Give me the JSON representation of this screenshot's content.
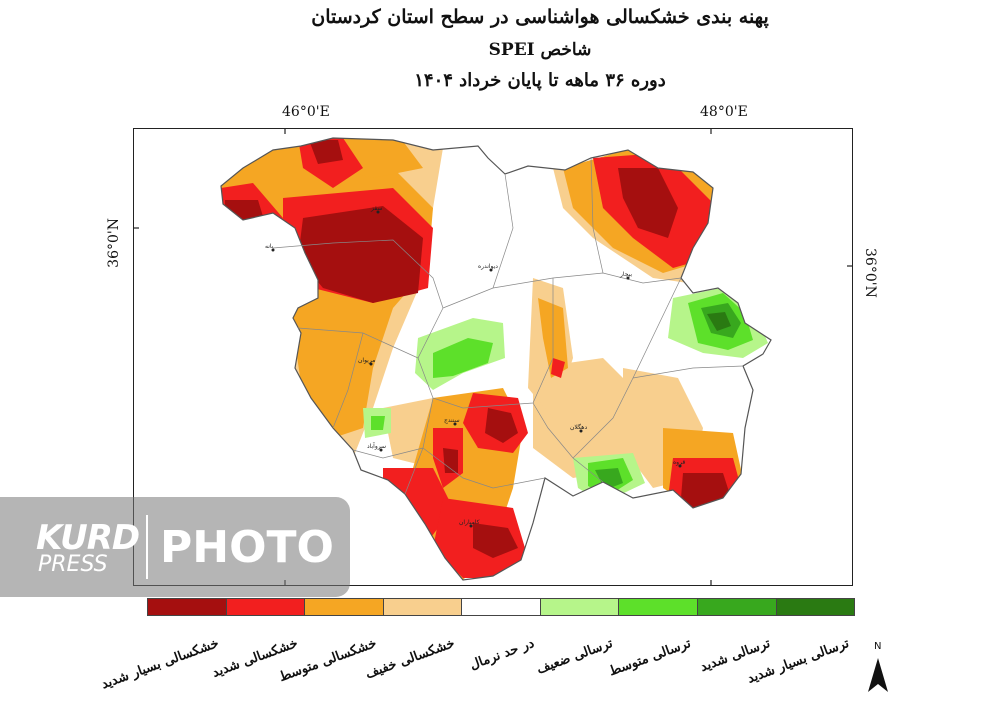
{
  "title": {
    "line1": "پهنه بندی خشکسالی هواشناسی در سطح استان کردستان",
    "line2": "شاخص SPEI",
    "line3": "دوره ۳۶ ماهه تا پایان خرداد ۱۴۰۴"
  },
  "coords": {
    "lon_46": "46°0'E",
    "lon_48": "48°0'E",
    "lat_left": "36°0'N",
    "lat_right": "36°0'N"
  },
  "cities": {
    "saqqez": "سقز",
    "baneh": "بانه",
    "divandarreh": "دیواندره",
    "bijar": "بیجار",
    "marivan": "مریوان",
    "sanandaj": "سنندج",
    "dehgolan": "دهگلان",
    "sarvabad": "سروآباد",
    "qorveh": "قروه",
    "kamyaran": "کامیاران"
  },
  "legend": [
    {
      "label": "خشکسالی بسیار شدید",
      "color": "#a50f0f"
    },
    {
      "label": "خشکسالی شدید",
      "color": "#f21f1f"
    },
    {
      "label": "خشکسالی متوسط",
      "color": "#f5a623"
    },
    {
      "label": "خشکسالی خفیف",
      "color": "#f8cf8e"
    },
    {
      "label": "در حد نرمال",
      "color": "#ffffff"
    },
    {
      "label": "ترسالی ضعیف",
      "color": "#b6f58a"
    },
    {
      "label": "ترسالی متوسط",
      "color": "#5de02a"
    },
    {
      "label": "ترسالی شدید",
      "color": "#38a81e"
    },
    {
      "label": "ترسالی بسیار شدید",
      "color": "#2a7a12"
    }
  ],
  "north": "N",
  "watermark": {
    "kurd": "KURD",
    "press": "PRESS",
    "photo": "PHOTO"
  }
}
